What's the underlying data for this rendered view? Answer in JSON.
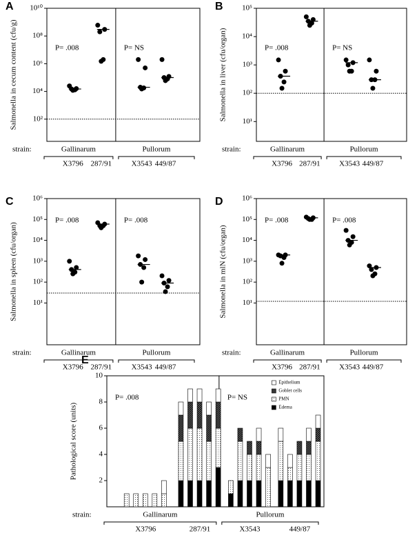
{
  "chart_data": [
    {
      "type": "strip",
      "panel": "A",
      "ylabel": "Salmonella in cecum content (cfu/g)",
      "log_y": true,
      "ylim": [
        2.5,
        10000000000
      ],
      "yticks": [
        {
          "value": 100,
          "label": "10²"
        },
        {
          "value": 10000,
          "label": "10⁴"
        },
        {
          "value": 1000000,
          "label": "10⁶"
        },
        {
          "value": 100000000,
          "label": "10⁸"
        },
        {
          "value": 10000000000,
          "label": "10¹⁰"
        }
      ],
      "detection_limit": 100,
      "x_label": "strain:",
      "groups": [
        "Gallinarum",
        "Pullorum"
      ],
      "categories": [
        "X3796",
        "287/91",
        "X3543",
        "449/87"
      ],
      "values": [
        [
          25000,
          16000,
          15000,
          13000,
          12000
        ],
        [
          600000000,
          300000000,
          200000000,
          2000000,
          1500000
        ],
        [
          2000000,
          500000,
          20000,
          18000,
          15000
        ],
        [
          2000000,
          120000,
          100000,
          80000,
          60000
        ]
      ],
      "medians": [
        15000,
        300000000,
        20000,
        100000
      ],
      "annotations": [
        "P= .008",
        "P= NS"
      ],
      "color": "#000000"
    },
    {
      "type": "strip",
      "panel": "B",
      "ylabel": "Salmonella in liver (cfu/organ)",
      "log_y": true,
      "ylim": [
        2,
        100000
      ],
      "yticks": [
        {
          "value": 10,
          "label": "10¹"
        },
        {
          "value": 100,
          "label": "10²"
        },
        {
          "value": 1000,
          "label": "10³"
        },
        {
          "value": 10000,
          "label": "10⁴"
        },
        {
          "value": 100000,
          "label": "10⁵"
        }
      ],
      "detection_limit": 100,
      "x_label": "strain:",
      "groups": [
        "Gallinarum",
        "Pullorum"
      ],
      "categories": [
        "X3796",
        "287/91",
        "X3543",
        "449/87"
      ],
      "values": [
        [
          1500,
          600,
          400,
          250,
          150
        ],
        [
          50000,
          40000,
          35000,
          30000,
          25000
        ],
        [
          1500,
          1200,
          1000,
          600,
          600
        ],
        [
          1500,
          600,
          300,
          300,
          150
        ]
      ],
      "medians": [
        400,
        35000,
        1200,
        300
      ],
      "annotations": [
        "P= .008",
        "P= NS"
      ],
      "color": "#000000"
    },
    {
      "type": "strip",
      "panel": "C",
      "ylabel": "Salmonella in spleen (cfu/organ)",
      "log_y": true,
      "ylim": [
        0.1,
        1000000
      ],
      "yticks": [
        {
          "value": 10,
          "label": "10¹"
        },
        {
          "value": 100,
          "label": "10²"
        },
        {
          "value": 1000,
          "label": "10³"
        },
        {
          "value": 10000,
          "label": "10⁴"
        },
        {
          "value": 100000,
          "label": "10⁵"
        },
        {
          "value": 1000000,
          "label": "10⁶"
        }
      ],
      "detection_limit": 30,
      "x_label": "strain:",
      "groups": [
        "Gallinarum",
        "Pullorum"
      ],
      "categories": [
        "X3796",
        "287/91",
        "X3543",
        "449/87"
      ],
      "values": [
        [
          1000,
          500,
          400,
          300,
          250
        ],
        [
          70000,
          60000,
          50000,
          50000,
          40000
        ],
        [
          1800,
          1200,
          700,
          500,
          100
        ],
        [
          200,
          120,
          90,
          60,
          35
        ]
      ],
      "medians": [
        400,
        60000,
        700,
        90
      ],
      "annotations": [
        "P= .008",
        "P= .008"
      ],
      "color": "#000000"
    },
    {
      "type": "strip",
      "panel": "D",
      "ylabel": "Salmonella in mlN (cfu/organ)",
      "log_y": true,
      "ylim": [
        0.1,
        1000000
      ],
      "yticks": [
        {
          "value": 10,
          "label": "10¹"
        },
        {
          "value": 100,
          "label": "10²"
        },
        {
          "value": 1000,
          "label": "10³"
        },
        {
          "value": 10000,
          "label": "10⁴"
        },
        {
          "value": 100000,
          "label": "10⁵"
        },
        {
          "value": 1000000,
          "label": "10⁶"
        }
      ],
      "detection_limit": 12,
      "x_label": "strain:",
      "groups": [
        "Gallinarum",
        "Pullorum"
      ],
      "categories": [
        "X3796",
        "287/91",
        "X3543",
        "449/87"
      ],
      "values": [
        [
          2000,
          2000,
          1800,
          1500,
          800
        ],
        [
          130000,
          120000,
          110000,
          100000,
          100000
        ],
        [
          30000,
          15000,
          10000,
          8000,
          6000
        ],
        [
          600,
          500,
          400,
          250,
          200
        ]
      ],
      "medians": [
        2000,
        120000,
        10000,
        500
      ],
      "annotations": [
        "P= .008",
        "P= .008"
      ],
      "color": "#000000"
    },
    {
      "type": "stacked_bar",
      "panel": "E",
      "ylabel": "Pathological score (units)",
      "ylim": [
        0,
        10
      ],
      "yticks": [
        2,
        4,
        6,
        8,
        10
      ],
      "x_label": "strain:",
      "groups": [
        "Gallinarum",
        "Pullorum"
      ],
      "subgroups": [
        "X3796",
        "287/91",
        "X3543",
        "449/87"
      ],
      "categories": [
        null,
        null,
        null,
        null,
        null,
        null,
        null,
        null,
        null,
        null,
        null,
        null,
        null,
        null,
        null,
        null,
        null,
        null,
        null,
        null
      ],
      "series": [
        {
          "name": "Edema",
          "color": "#000000",
          "values": [
            0,
            0,
            0,
            0,
            0,
            2,
            2,
            2,
            2,
            3,
            1,
            2,
            2,
            2,
            0,
            2,
            2,
            2,
            2,
            2
          ]
        },
        {
          "name": "PMN",
          "color": "#ffffff",
          "pattern": "dots",
          "values": [
            1,
            1,
            1,
            1,
            1,
            3,
            4,
            4,
            3,
            3,
            1,
            3,
            2,
            2,
            3,
            3,
            1,
            2,
            2,
            3
          ]
        },
        {
          "name": "Goblet cells",
          "color": "#666666",
          "pattern": "crosshatch",
          "values": [
            0,
            0,
            0,
            0,
            0,
            2,
            2,
            2,
            2,
            2,
            0,
            1,
            1,
            1,
            0,
            0,
            0,
            1,
            1,
            1
          ]
        },
        {
          "name": "Epithelium",
          "color": "#ffffff",
          "values": [
            0,
            0,
            0,
            0,
            1,
            1,
            1,
            1,
            1,
            1,
            0,
            0,
            0,
            1,
            1,
            1,
            1,
            0,
            1,
            1
          ]
        }
      ],
      "annotations": [
        "P= .008",
        "P= NS"
      ]
    }
  ]
}
